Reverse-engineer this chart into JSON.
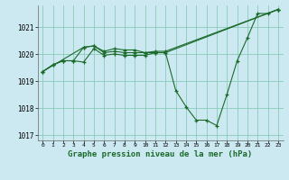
{
  "xlabel": "Graphe pression niveau de la mer (hPa)",
  "background_color": "#cce8f0",
  "grid_color": "#88ccbb",
  "line_color": "#1a6b2a",
  "xlim": [
    -0.5,
    23.5
  ],
  "ylim": [
    1016.8,
    1021.8
  ],
  "yticks": [
    1017,
    1018,
    1019,
    1020,
    1021
  ],
  "xticks": [
    0,
    1,
    2,
    3,
    4,
    5,
    6,
    7,
    8,
    9,
    10,
    11,
    12,
    13,
    14,
    15,
    16,
    17,
    18,
    19,
    20,
    21,
    22,
    23
  ],
  "series": [
    {
      "x": [
        0,
        1,
        2,
        3,
        4,
        5,
        6,
        7,
        8,
        9,
        10,
        11,
        12,
        13,
        14,
        15,
        16,
        17,
        18,
        19,
        20,
        21,
        22,
        23
      ],
      "y": [
        1019.35,
        1019.6,
        1019.75,
        1019.75,
        1019.7,
        1020.2,
        1019.95,
        1020.0,
        1019.95,
        1019.95,
        1019.95,
        1020.05,
        1020.05,
        1018.65,
        1018.05,
        1017.55,
        1017.55,
        1017.35,
        1018.5,
        1019.75,
        1020.6,
        1021.5,
        1021.5,
        1021.65
      ]
    },
    {
      "x": [
        0,
        1,
        2,
        3,
        4,
        5,
        6,
        7,
        8,
        9,
        10,
        11,
        12,
        23
      ],
      "y": [
        1019.35,
        1019.6,
        1019.75,
        1019.75,
        1020.25,
        1020.3,
        1020.05,
        1020.1,
        1020.05,
        1020.05,
        1020.05,
        1020.1,
        1020.1,
        1021.65
      ]
    },
    {
      "x": [
        0,
        4,
        5,
        6,
        7,
        8,
        9,
        10,
        11,
        12,
        23
      ],
      "y": [
        1019.35,
        1020.25,
        1020.3,
        1020.1,
        1020.2,
        1020.15,
        1020.15,
        1020.05,
        1020.05,
        1020.05,
        1021.65
      ]
    }
  ]
}
